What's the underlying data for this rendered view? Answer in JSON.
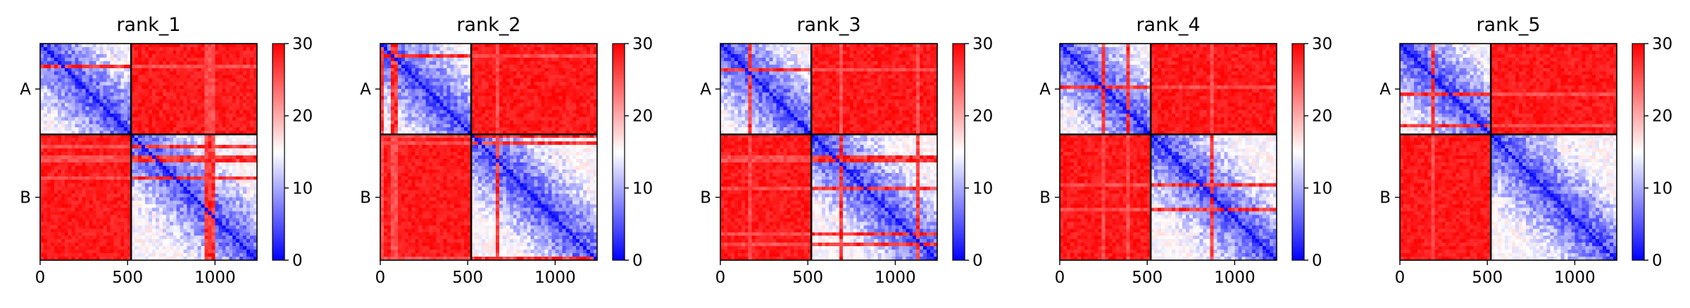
{
  "figure": {
    "description_colors": {
      "low": "#0000ff",
      "mid": "#ffffff",
      "high": "#ff0000",
      "frame": "#000000",
      "text": "#000000"
    }
  },
  "chart_data": [
    {
      "type": "heatmap",
      "title": "rank_1",
      "x_ticks": [
        0,
        500,
        1000
      ],
      "xlim": [
        0,
        1240
      ],
      "ylim": [
        0,
        1240
      ],
      "y_categories": [
        "A",
        "B"
      ],
      "chain_boundary": 520,
      "colorbar": {
        "min": 0,
        "max": 30,
        "ticks": [
          0,
          10,
          20,
          30
        ],
        "colors": [
          "#0000ff",
          "#ffffff",
          "#ff0000"
        ]
      }
    },
    {
      "type": "heatmap",
      "title": "rank_2",
      "x_ticks": [
        0,
        500,
        1000
      ],
      "xlim": [
        0,
        1240
      ],
      "ylim": [
        0,
        1240
      ],
      "y_categories": [
        "A",
        "B"
      ],
      "chain_boundary": 520,
      "colorbar": {
        "min": 0,
        "max": 30,
        "ticks": [
          0,
          10,
          20,
          30
        ],
        "colors": [
          "#0000ff",
          "#ffffff",
          "#ff0000"
        ]
      }
    },
    {
      "type": "heatmap",
      "title": "rank_3",
      "x_ticks": [
        0,
        500,
        1000
      ],
      "xlim": [
        0,
        1240
      ],
      "ylim": [
        0,
        1240
      ],
      "y_categories": [
        "A",
        "B"
      ],
      "chain_boundary": 520,
      "colorbar": {
        "min": 0,
        "max": 30,
        "ticks": [
          0,
          10,
          20,
          30
        ],
        "colors": [
          "#0000ff",
          "#ffffff",
          "#ff0000"
        ]
      }
    },
    {
      "type": "heatmap",
      "title": "rank_4",
      "x_ticks": [
        0,
        500,
        1000
      ],
      "xlim": [
        0,
        1240
      ],
      "ylim": [
        0,
        1240
      ],
      "y_categories": [
        "A",
        "B"
      ],
      "chain_boundary": 520,
      "colorbar": {
        "min": 0,
        "max": 30,
        "ticks": [
          0,
          10,
          20,
          30
        ],
        "colors": [
          "#0000ff",
          "#ffffff",
          "#ff0000"
        ]
      }
    },
    {
      "type": "heatmap",
      "title": "rank_5",
      "x_ticks": [
        0,
        500,
        1000
      ],
      "xlim": [
        0,
        1240
      ],
      "ylim": [
        0,
        1240
      ],
      "y_categories": [
        "A",
        "B"
      ],
      "chain_boundary": 520,
      "colorbar": {
        "min": 0,
        "max": 30,
        "ticks": [
          0,
          10,
          20,
          30
        ],
        "colors": [
          "#0000ff",
          "#ffffff",
          "#ff0000"
        ]
      }
    }
  ]
}
